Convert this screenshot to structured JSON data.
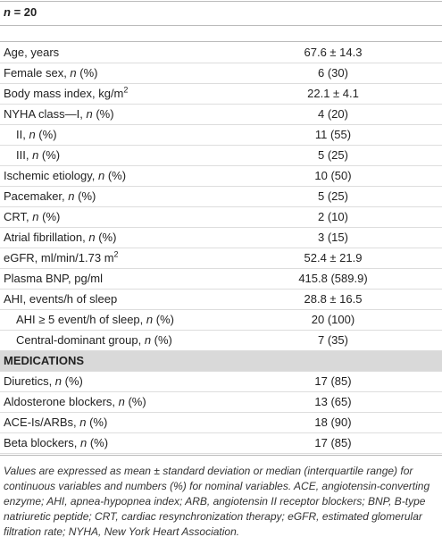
{
  "table": {
    "header": [
      "",
      {
        "text": "n",
        "italic": true
      },
      " = 20"
    ],
    "rows": [
      {
        "label": [
          "Age, years"
        ],
        "value": "67.6 ± 14.3"
      },
      {
        "label": [
          "Female sex, ",
          {
            "text": "n",
            "italic": true
          },
          " (%)"
        ],
        "value": "6 (30)"
      },
      {
        "label": [
          "Body mass index, kg/m",
          {
            "text": "2",
            "sup": true
          }
        ],
        "value": "22.1 ± 4.1"
      },
      {
        "label": [
          "NYHA class—I, ",
          {
            "text": "n",
            "italic": true
          },
          " (%)"
        ],
        "value": "4 (20)"
      },
      {
        "label": [
          "II, ",
          {
            "text": "n",
            "italic": true
          },
          " (%)"
        ],
        "value": "11 (55)",
        "level": 1
      },
      {
        "label": [
          "III, ",
          {
            "text": "n",
            "italic": true
          },
          " (%)"
        ],
        "value": "5 (25)",
        "level": 1
      },
      {
        "label": [
          "Ischemic etiology, ",
          {
            "text": "n",
            "italic": true
          },
          " (%)"
        ],
        "value": "10 (50)"
      },
      {
        "label": [
          "Pacemaker, ",
          {
            "text": "n",
            "italic": true
          },
          " (%)"
        ],
        "value": "5 (25)"
      },
      {
        "label": [
          "CRT, ",
          {
            "text": "n",
            "italic": true
          },
          " (%)"
        ],
        "value": "2 (10)"
      },
      {
        "label": [
          "Atrial fibrillation, ",
          {
            "text": "n",
            "italic": true
          },
          " (%)"
        ],
        "value": "3 (15)"
      },
      {
        "label": [
          "eGFR, ml/min/1.73 m",
          {
            "text": "2",
            "sup": true
          }
        ],
        "value": "52.4 ± 21.9"
      },
      {
        "label": [
          "Plasma BNP, pg/ml"
        ],
        "value": "415.8 (589.9)"
      },
      {
        "label": [
          "AHI, events/h of sleep"
        ],
        "value": "28.8 ± 16.5"
      },
      {
        "label": [
          "AHI ≥ 5 event/h of sleep, ",
          {
            "text": "n",
            "italic": true
          },
          " (%)"
        ],
        "value": "20 (100)",
        "level": 1
      },
      {
        "label": [
          "Central-dominant group, ",
          {
            "text": "n",
            "italic": true
          },
          " (%)"
        ],
        "value": "7 (35)",
        "level": 1
      },
      {
        "section": "MEDICATIONS"
      },
      {
        "label": [
          "Diuretics, ",
          {
            "text": "n",
            "italic": true
          },
          " (%)"
        ],
        "value": "17 (85)"
      },
      {
        "label": [
          "Aldosterone blockers, ",
          {
            "text": "n",
            "italic": true
          },
          " (%)"
        ],
        "value": "13 (65)"
      },
      {
        "label": [
          "ACE-Is/ARBs, ",
          {
            "text": "n",
            "italic": true
          },
          " (%)"
        ],
        "value": "18 (90)"
      },
      {
        "label": [
          "Beta blockers, ",
          {
            "text": "n",
            "italic": true
          },
          " (%)"
        ],
        "value": "17 (85)"
      }
    ],
    "footnote": "Values are expressed as mean ± standard deviation or median (interquartile range) for continuous variables and numbers (%) for nominal variables. ACE, angiotensin-converting enzyme; AHI, apnea-hypopnea index; ARB, angiotensin II receptor blockers; BNP, B-type natriuretic peptide; CRT, cardiac resynchronization therapy; eGFR, estimated glomerular filtration rate; NYHA, New York Heart Association."
  }
}
